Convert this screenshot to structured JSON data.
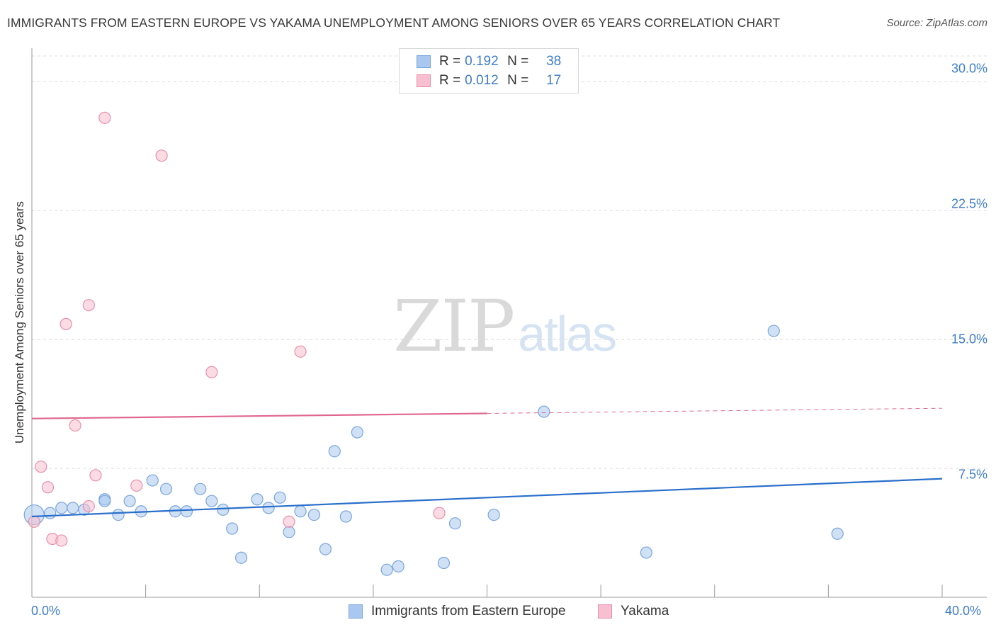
{
  "title": "IMMIGRANTS FROM EASTERN EUROPE VS YAKAMA UNEMPLOYMENT AMONG SENIORS OVER 65 YEARS CORRELATION CHART",
  "source": "Source: ZipAtlas.com",
  "watermark": {
    "zip": "ZIP",
    "atlas": "atlas"
  },
  "legend_top": [
    {
      "r_label": "R =",
      "r_value": "0.192",
      "n_label": "N =",
      "n_value": "38"
    },
    {
      "r_label": "R =",
      "r_value": "0.012",
      "n_label": "N =",
      "n_value": "17"
    }
  ],
  "colors": {
    "blue_fill": "#aac8ef",
    "blue_stroke": "#7aa5dc",
    "blue_line": "#2a6fcb",
    "pink_fill": "#f7bfcf",
    "pink_stroke": "#e98fab",
    "pink_line": "#e0688f",
    "tick_text": "#3f7dcb",
    "grid": "#dddddd"
  },
  "chart_data": {
    "type": "scatter",
    "title": "IMMIGRANTS FROM EASTERN EUROPE VS YAKAMA UNEMPLOYMENT AMONG SENIORS OVER 65 YEARS CORRELATION CHART",
    "xlabel": "",
    "ylabel": "Unemployment Among Seniors over 65 years",
    "xlim": [
      0,
      40
    ],
    "ylim": [
      0,
      31.5
    ],
    "y_ticks": [
      7.5,
      15.0,
      22.5,
      30.0
    ],
    "y_tick_labels": [
      "7.5%",
      "15.0%",
      "22.5%",
      "30.0%"
    ],
    "x_tick_labels": [
      "0.0%",
      "40.0%"
    ],
    "series": [
      {
        "name": "Immigrants from Eastern Europe",
        "color": "blue",
        "trend": {
          "x": [
            0,
            40
          ],
          "y": [
            4.7,
            6.9
          ],
          "solid_until": 40
        },
        "points": [
          [
            0.1,
            4.8
          ],
          [
            0.8,
            4.9
          ],
          [
            1.3,
            5.2
          ],
          [
            1.8,
            5.2
          ],
          [
            2.3,
            5.1
          ],
          [
            3.2,
            5.7
          ],
          [
            3.2,
            5.6
          ],
          [
            3.8,
            4.8
          ],
          [
            4.3,
            5.6
          ],
          [
            4.8,
            5.0
          ],
          [
            5.3,
            6.8
          ],
          [
            5.9,
            6.3
          ],
          [
            6.3,
            5.0
          ],
          [
            6.8,
            5.0
          ],
          [
            7.4,
            6.3
          ],
          [
            7.9,
            5.6
          ],
          [
            8.4,
            5.1
          ],
          [
            8.8,
            4.0
          ],
          [
            9.2,
            2.3
          ],
          [
            9.9,
            5.7
          ],
          [
            10.4,
            5.2
          ],
          [
            10.9,
            5.8
          ],
          [
            11.3,
            3.8
          ],
          [
            11.8,
            5.0
          ],
          [
            12.4,
            4.8
          ],
          [
            12.9,
            2.8
          ],
          [
            13.3,
            8.5
          ],
          [
            13.8,
            4.7
          ],
          [
            14.3,
            9.6
          ],
          [
            15.6,
            1.6
          ],
          [
            16.1,
            1.8
          ],
          [
            18.1,
            2.0
          ],
          [
            18.6,
            4.3
          ],
          [
            20.3,
            4.8
          ],
          [
            22.5,
            10.8
          ],
          [
            27.0,
            2.6
          ],
          [
            32.6,
            15.5
          ],
          [
            35.4,
            3.7
          ]
        ]
      },
      {
        "name": "Yakama",
        "color": "pink",
        "trend": {
          "x": [
            0,
            40
          ],
          "y": [
            10.4,
            11.0
          ],
          "solid_until": 20
        },
        "points": [
          [
            0.1,
            4.4
          ],
          [
            0.4,
            7.6
          ],
          [
            0.7,
            6.4
          ],
          [
            0.9,
            3.4
          ],
          [
            1.3,
            3.3
          ],
          [
            1.5,
            15.9
          ],
          [
            1.9,
            10.0
          ],
          [
            2.5,
            5.3
          ],
          [
            2.5,
            17.0
          ],
          [
            2.8,
            7.1
          ],
          [
            3.2,
            27.9
          ],
          [
            4.6,
            6.5
          ],
          [
            5.7,
            25.7
          ],
          [
            7.9,
            13.1
          ],
          [
            11.3,
            4.4
          ],
          [
            11.8,
            14.3
          ],
          [
            17.9,
            4.9
          ]
        ]
      }
    ]
  },
  "bottom_legend": [
    {
      "label": "Immigrants from Eastern Europe"
    },
    {
      "label": "Yakama"
    }
  ]
}
